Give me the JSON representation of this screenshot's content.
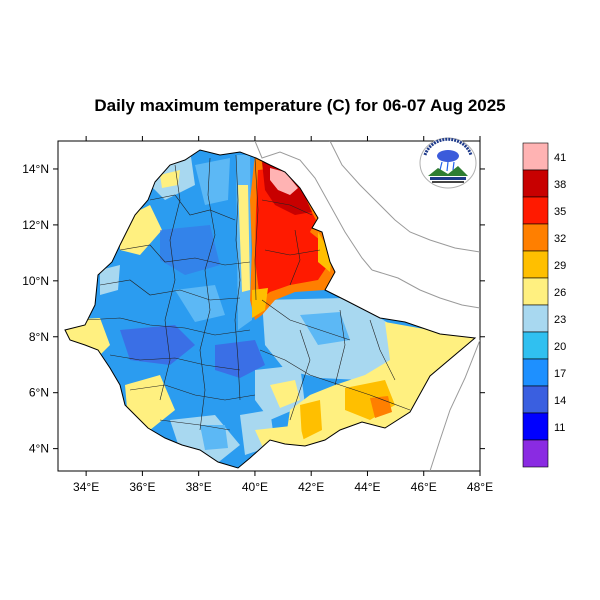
{
  "title": "Daily maximum temperature (C) for 06-07 Aug 2025",
  "map": {
    "lon_ticks": [
      "34°E",
      "36°E",
      "38°E",
      "40°E",
      "42°E",
      "44°E",
      "46°E",
      "48°E"
    ],
    "lat_ticks": [
      "14°N",
      "12°N",
      "10°N",
      "8°N",
      "6°N",
      "4°N"
    ],
    "lon_range": [
      33,
      48
    ],
    "lat_range": [
      3.2,
      15
    ]
  },
  "colorbar": {
    "labels": [
      "41",
      "38",
      "35",
      "32",
      "29",
      "26",
      "23",
      "20",
      "17",
      "14",
      "11"
    ],
    "colors": [
      "#ffb3b3",
      "#c80000",
      "#ff1a00",
      "#ff7f00",
      "#ffbf00",
      "#fff080",
      "#a8d8f0",
      "#30c0f0",
      "#1e90ff",
      "#3a5fe0",
      "#0000ff",
      "#8a2be2"
    ]
  },
  "palette": {
    "cool_dark": "#3a6fe6",
    "cool": "#2b9cf0",
    "cool_light": "#5cb8f5",
    "pale_blue": "#a8d8f0",
    "pale_yellow": "#fff080",
    "amber": "#ffbf00",
    "orange": "#ff7f00",
    "red": "#ff1a00",
    "dark_red": "#c80000",
    "pink": "#ffb3b3"
  },
  "logo": {
    "name": "ethiopian-meteorology-institute-logo"
  }
}
